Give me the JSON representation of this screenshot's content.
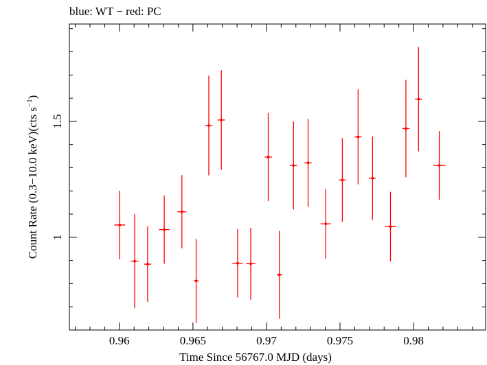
{
  "chart_data": {
    "type": "scatter",
    "title": "blue: WT − red: PC",
    "xlabel": "Time Since 56767.0 MJD (days)",
    "ylabel_main": "Count Rate (0.3−10.0 keV)(cts s",
    "ylabel_sup": "−1",
    "ylabel_close": ")",
    "xlim": [
      0.9566,
      0.9849
    ],
    "ylim": [
      0.6,
      1.92
    ],
    "x_ticks_major": [
      0.96,
      0.965,
      0.97,
      0.975,
      0.98
    ],
    "x_tick_labels": [
      "0.96",
      "0.965",
      "0.97",
      "0.975",
      "0.98"
    ],
    "y_ticks_major": [
      1.0,
      1.5
    ],
    "y_tick_labels": [
      "1",
      "1.5"
    ],
    "y_ticks_minor": [
      0.7,
      0.8,
      0.9,
      1.1,
      1.2,
      1.3,
      1.4,
      1.6,
      1.7,
      1.8,
      1.9
    ],
    "grid": false,
    "series": [
      {
        "name": "PC",
        "color": "#ff0000",
        "points": [
          {
            "x": 0.96002,
            "xerr": 0.00037,
            "y": 1.053,
            "yerr": 0.148
          },
          {
            "x": 0.96104,
            "xerr": 0.00025,
            "y": 0.897,
            "yerr": 0.203
          },
          {
            "x": 0.96192,
            "xerr": 0.00025,
            "y": 0.884,
            "yerr": 0.163
          },
          {
            "x": 0.96305,
            "xerr": 0.00036,
            "y": 1.033,
            "yerr": 0.147
          },
          {
            "x": 0.96425,
            "xerr": 0.00031,
            "y": 1.11,
            "yerr": 0.158
          },
          {
            "x": 0.96522,
            "xerr": 0.00018,
            "y": 0.812,
            "yerr": 0.181
          },
          {
            "x": 0.96608,
            "xerr": 0.00025,
            "y": 1.482,
            "yerr": 0.215
          },
          {
            "x": 0.96693,
            "xerr": 0.00025,
            "y": 1.506,
            "yerr": 0.215
          },
          {
            "x": 0.96804,
            "xerr": 0.00036,
            "y": 0.888,
            "yerr": 0.147
          },
          {
            "x": 0.96893,
            "xerr": 0.00031,
            "y": 0.886,
            "yerr": 0.155
          },
          {
            "x": 0.97012,
            "xerr": 0.00025,
            "y": 1.346,
            "yerr": 0.19
          },
          {
            "x": 0.97088,
            "xerr": 0.00018,
            "y": 0.838,
            "yerr": 0.19
          },
          {
            "x": 0.97184,
            "xerr": 0.00025,
            "y": 1.31,
            "yerr": 0.19
          },
          {
            "x": 0.97283,
            "xerr": 0.00025,
            "y": 1.321,
            "yerr": 0.19
          },
          {
            "x": 0.97403,
            "xerr": 0.00036,
            "y": 1.058,
            "yerr": 0.15
          },
          {
            "x": 0.97516,
            "xerr": 0.00025,
            "y": 1.247,
            "yerr": 0.18
          },
          {
            "x": 0.97623,
            "xerr": 0.00025,
            "y": 1.433,
            "yerr": 0.205
          },
          {
            "x": 0.97721,
            "xerr": 0.00025,
            "y": 1.255,
            "yerr": 0.18
          },
          {
            "x": 0.97843,
            "xerr": 0.00036,
            "y": 1.046,
            "yerr": 0.15
          },
          {
            "x": 0.97948,
            "xerr": 0.00025,
            "y": 1.469,
            "yerr": 0.21
          },
          {
            "x": 0.98034,
            "xerr": 0.00025,
            "y": 1.596,
            "yerr": 0.225
          },
          {
            "x": 0.98175,
            "xerr": 0.00042,
            "y": 1.31,
            "yerr": 0.148
          }
        ]
      }
    ]
  }
}
